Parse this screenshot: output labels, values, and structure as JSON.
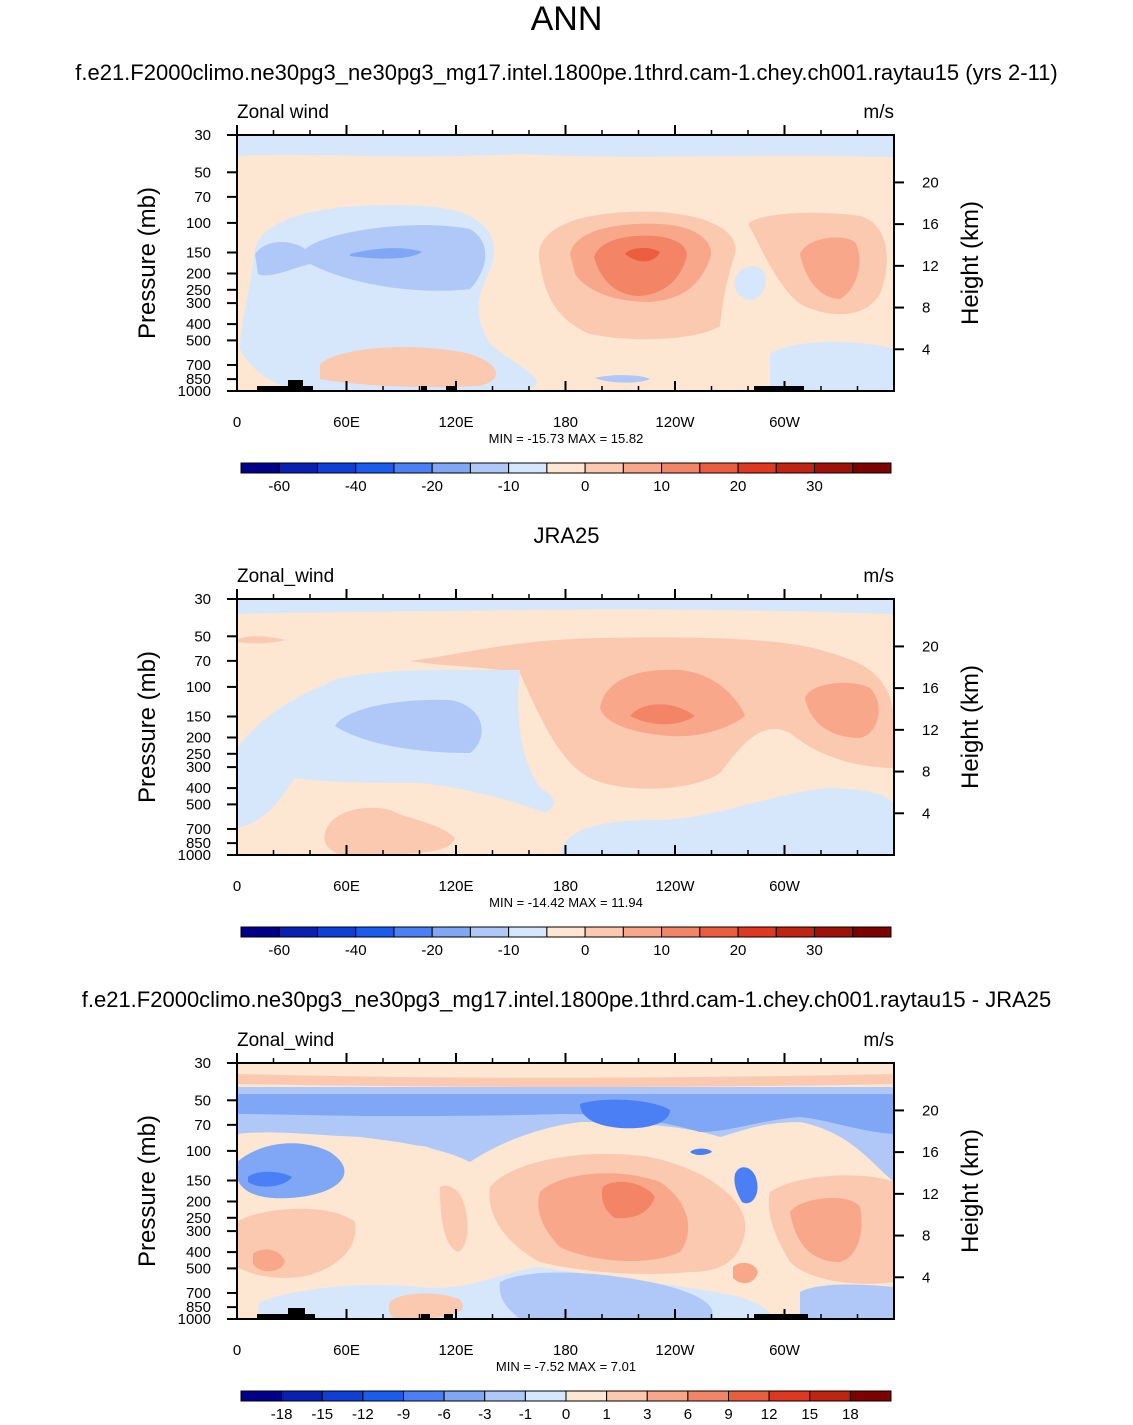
{
  "page": {
    "title": "ANN"
  },
  "chart_data": [
    {
      "type": "heatmap",
      "title": "f.e21.F2000climo.ne30pg3_ne30pg3_mg17.intel.1800pe.1thrd.cam-1.chey.ch001.raytau15 (yrs 2-11)",
      "left_string": "Zonal wind",
      "right_string": "m/s",
      "ylabel": "Pressure (mb)",
      "ylabel_right": "Height (km)",
      "x_ticks": [
        "0",
        "60E",
        "120E",
        "180",
        "120W",
        "60W"
      ],
      "y_ticks": [
        "30",
        "50",
        "70",
        "100",
        "150",
        "200",
        "250",
        "300",
        "400",
        "500",
        "700",
        "850",
        "1000"
      ],
      "y_ticks_right": [
        "20",
        "16",
        "12",
        "8",
        "4"
      ],
      "min_max": "MIN = -15.73  MAX =  15.82",
      "stats": {
        "min": -15.73,
        "max": 15.82
      },
      "colorbar_labels": [
        "-60",
        "-40",
        "-20",
        "-10",
        "0",
        "10",
        "20",
        "30"
      ],
      "colorbar_levels": [
        -70,
        -60,
        -50,
        -40,
        -30,
        -20,
        -15,
        -10,
        -5,
        0,
        5,
        10,
        15,
        20,
        25,
        30,
        35
      ],
      "colors": [
        "#00008b",
        "#0a1fb3",
        "#0f3fd9",
        "#1a5cf0",
        "#4a7ff5",
        "#7fa7f5",
        "#b0c8f7",
        "#d6e6fb",
        "#fde6d2",
        "#fbc8b0",
        "#f9a78b",
        "#f48466",
        "#ec5d3e",
        "#e0381f",
        "#c02310",
        "#a01208",
        "#7f0000"
      ]
    },
    {
      "type": "heatmap",
      "title": "JRA25",
      "left_string": "Zonal_wind",
      "right_string": "m/s",
      "ylabel": "Pressure (mb)",
      "ylabel_right": "Height (km)",
      "x_ticks": [
        "0",
        "60E",
        "120E",
        "180",
        "120W",
        "60W"
      ],
      "y_ticks": [
        "30",
        "50",
        "70",
        "100",
        "150",
        "200",
        "250",
        "300",
        "400",
        "500",
        "700",
        "850",
        "1000"
      ],
      "y_ticks_right": [
        "20",
        "16",
        "12",
        "8",
        "4"
      ],
      "min_max": "MIN = -14.42  MAX =  11.94",
      "stats": {
        "min": -14.42,
        "max": 11.94
      },
      "colorbar_labels": [
        "-60",
        "-40",
        "-20",
        "-10",
        "0",
        "10",
        "20",
        "30"
      ],
      "colorbar_levels": [
        -70,
        -60,
        -50,
        -40,
        -30,
        -20,
        -15,
        -10,
        -5,
        0,
        5,
        10,
        15,
        20,
        25,
        30,
        35
      ],
      "colors": [
        "#00008b",
        "#0a1fb3",
        "#0f3fd9",
        "#1a5cf0",
        "#4a7ff5",
        "#7fa7f5",
        "#b0c8f7",
        "#d6e6fb",
        "#fde6d2",
        "#fbc8b0",
        "#f9a78b",
        "#f48466",
        "#ec5d3e",
        "#e0381f",
        "#c02310",
        "#a01208",
        "#7f0000"
      ]
    },
    {
      "type": "heatmap",
      "title": "f.e21.F2000climo.ne30pg3_ne30pg3_mg17.intel.1800pe.1thrd.cam-1.chey.ch001.raytau15 - JRA25",
      "left_string": "Zonal_wind",
      "right_string": "m/s",
      "ylabel": "Pressure (mb)",
      "ylabel_right": "Height (km)",
      "x_ticks": [
        "0",
        "60E",
        "120E",
        "180",
        "120W",
        "60W"
      ],
      "y_ticks": [
        "30",
        "50",
        "70",
        "100",
        "150",
        "200",
        "250",
        "300",
        "400",
        "500",
        "700",
        "850",
        "1000"
      ],
      "y_ticks_right": [
        "20",
        "16",
        "12",
        "8",
        "4"
      ],
      "min_max": "MIN =  -7.52  MAX =   7.01",
      "stats": {
        "min": -7.52,
        "max": 7.01
      },
      "colorbar_labels": [
        "-18",
        "-15",
        "-12",
        "-9",
        "-6",
        "-3",
        "-1",
        "0",
        "1",
        "3",
        "6",
        "9",
        "12",
        "15",
        "18"
      ],
      "colorbar_levels": [
        -18,
        -15,
        -12,
        -9,
        -6,
        -3,
        -1,
        0,
        1,
        3,
        6,
        9,
        12,
        15,
        18
      ],
      "colors": [
        "#00008b",
        "#0a1fb3",
        "#0f3fd9",
        "#1a5cf0",
        "#4a7ff5",
        "#7fa7f5",
        "#b0c8f7",
        "#d6e6fb",
        "#fde6d2",
        "#fbc8b0",
        "#f9a78b",
        "#f48466",
        "#ec5d3e",
        "#e0381f",
        "#c02310",
        "#7f0000"
      ]
    }
  ]
}
